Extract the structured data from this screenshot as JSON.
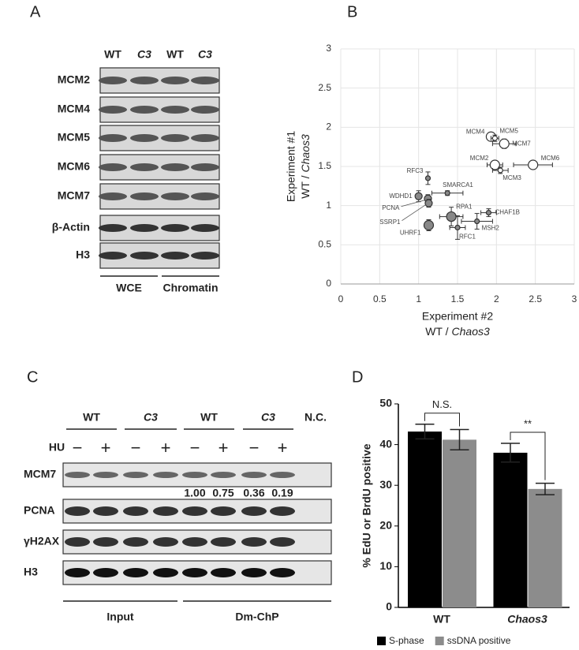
{
  "panel_labels": [
    "A",
    "B",
    "C",
    "D"
  ],
  "blot_a": {
    "lanes": [
      "WT",
      "C3",
      "WT",
      "C3"
    ],
    "rows": [
      "MCM2",
      "MCM4",
      "MCM5",
      "MCM6",
      "MCM7",
      "β-Actin",
      "H3"
    ],
    "groups": [
      "WCE",
      "Chromatin"
    ]
  },
  "blot_c": {
    "lane_groups": [
      "WT",
      "C3",
      "WT",
      "C3",
      "N.C."
    ],
    "treatment": "HU",
    "treatment_marks": [
      "−",
      "+",
      "−",
      "+",
      "−",
      "+",
      "−",
      "+"
    ],
    "rows": [
      "MCM7",
      "PCNA",
      "γH2AX",
      "H3"
    ],
    "quantification": [
      "1.00",
      "0.75",
      "0.36",
      "0.19"
    ],
    "groups": [
      "Input",
      "Dm-ChP"
    ]
  },
  "chart_data": [
    {
      "type": "scatter",
      "xlabel": "Experiment #2",
      "xlabel_ratio": [
        "WT /",
        "Chaos3"
      ],
      "ylabel": "Experiment #1",
      "ylabel_ratio": [
        "WT /",
        "Chaos3"
      ],
      "labels": [
        "MCM4",
        "MCM5",
        "MCM7",
        "MCM6",
        "MCM2",
        "MCM3",
        "RFC3",
        "SMARCA1",
        "WDHD1",
        "PCNA",
        "SSRP1",
        "RPA1",
        "CHAF1B",
        "MSH2",
        "RFC1",
        "UHRF1"
      ],
      "x": [
        1.93,
        1.98,
        2.1,
        2.47,
        1.98,
        2.05,
        1.12,
        1.37,
        1.0,
        1.12,
        1.13,
        1.42,
        1.9,
        1.75,
        1.5,
        1.13
      ],
      "values": [
        1.88,
        1.86,
        1.79,
        1.52,
        1.52,
        1.45,
        1.35,
        1.16,
        1.12,
        1.09,
        1.03,
        0.86,
        0.91,
        0.8,
        0.72,
        0.75
      ],
      "xerr": [
        0.05,
        0.05,
        0.15,
        0.25,
        0.1,
        0.1,
        0,
        0.2,
        0,
        0.03,
        0.03,
        0.15,
        0.1,
        0.2,
        0.1,
        0
      ],
      "yerr": [
        0.04,
        0.04,
        0.06,
        0.05,
        0.04,
        0.04,
        0.08,
        0.03,
        0.07,
        0.05,
        0.05,
        0.12,
        0.05,
        0.1,
        0.15,
        0.07
      ],
      "fill": [
        "#ffffff",
        "#ffffff",
        "#ffffff",
        "#ffffff",
        "#ffffff",
        "#ffffff",
        "#888888",
        "#888888",
        "#888888",
        "#888888",
        "#888888",
        "#888888",
        "#888888",
        "#888888",
        "#888888",
        "#888888"
      ],
      "marker": [
        "large",
        "small",
        "large",
        "large",
        "large",
        "small",
        "small",
        "small",
        "medium",
        "medium",
        "medium",
        "large",
        "small",
        "small",
        "small",
        "large"
      ],
      "xlim": [
        0,
        3
      ],
      "xticks": [
        0,
        0.5,
        1,
        1.5,
        2,
        2.5,
        3
      ],
      "ylim": [
        0,
        3
      ],
      "yticks": [
        0,
        0.5,
        1,
        1.5,
        2,
        2.5,
        3
      ],
      "grid": true
    },
    {
      "type": "bar",
      "ylabel": "% EdU or BrdU positive",
      "categories": [
        "WT",
        "Chaos3"
      ],
      "series": [
        {
          "name": "S-phase",
          "color": "#000000",
          "values": [
            43.2,
            38
          ],
          "errors": [
            1.8,
            2.3
          ]
        },
        {
          "name": "ssDNA positive",
          "color": "#8c8c8c",
          "values": [
            41.2,
            29.1
          ],
          "errors": [
            2.5,
            1.4
          ]
        }
      ],
      "ylim": [
        0,
        50
      ],
      "yticks": [
        0,
        10,
        20,
        30,
        40,
        50
      ],
      "annotations": [
        "N.S.",
        "**"
      ],
      "legend": "bottom"
    }
  ]
}
